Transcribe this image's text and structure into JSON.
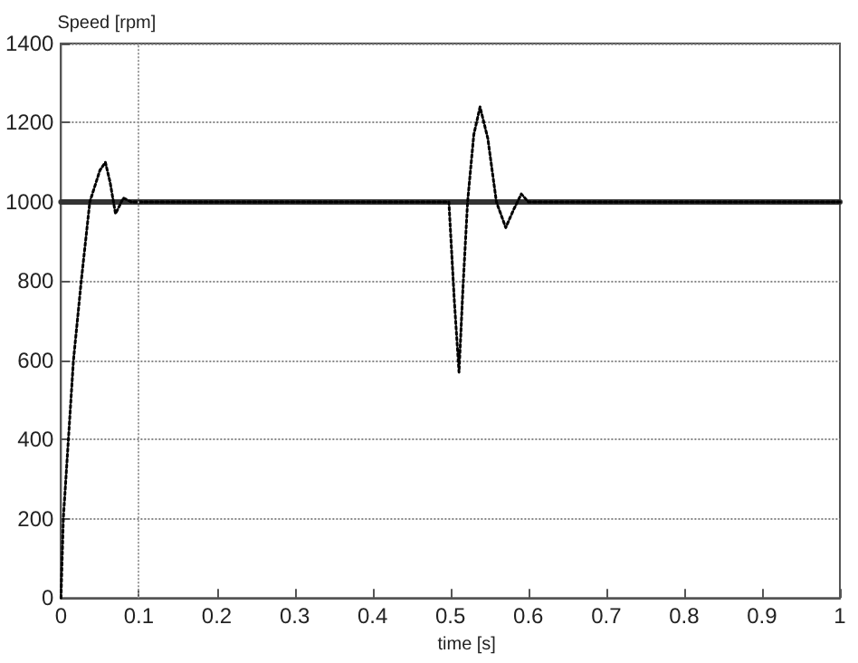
{
  "chart_data": {
    "type": "line",
    "xlabel": "time [s]",
    "ylabel": "Speed [rpm]",
    "xlim": [
      0,
      1
    ],
    "xticks": [
      0,
      0.1,
      0.2,
      0.3,
      0.4,
      0.5,
      0.6,
      0.7,
      0.8,
      0.9,
      1
    ],
    "ylim": [
      0,
      1400
    ],
    "yticks": [
      0,
      200,
      400,
      600,
      800,
      1000,
      1200,
      1400
    ],
    "grid": "y",
    "marker": "none",
    "ref_lines": [
      {
        "axis": "x",
        "value": 0.1,
        "color": "#999999",
        "line_style": "dotted"
      }
    ],
    "series": [
      {
        "color": "#333333",
        "line_style": "solid",
        "x": [
          0,
          1
        ],
        "values": [
          1000,
          1000
        ]
      },
      {
        "color": "#000000",
        "line_style": "dotted",
        "x": [
          0,
          0.003,
          0.016,
          0.026,
          0.037,
          0.05,
          0.057,
          0.063,
          0.07,
          0.08,
          0.09,
          0.498,
          0.505,
          0.511,
          0.516,
          0.522,
          0.53,
          0.538,
          0.548,
          0.559,
          0.571,
          0.581,
          0.591,
          0.6,
          1
        ],
        "values": [
          0,
          200,
          600,
          800,
          1000,
          1080,
          1100,
          1050,
          970,
          1010,
          1000,
          1000,
          750,
          570,
          780,
          1000,
          1170,
          1240,
          1160,
          1000,
          935,
          980,
          1020,
          1000,
          1000
        ]
      }
    ]
  }
}
